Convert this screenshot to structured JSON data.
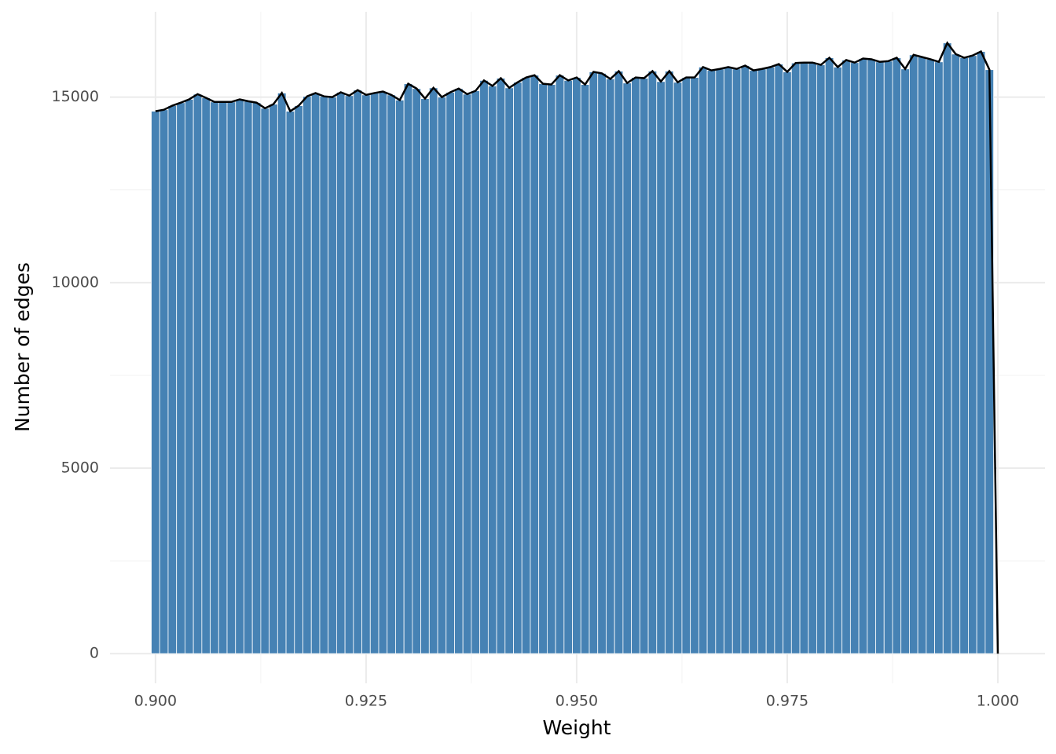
{
  "chart_data": {
    "type": "histogram",
    "x_label": "Weight",
    "y_label": "Number of edges",
    "bins": [
      0.8995,
      0.9005,
      0.9015,
      0.9025,
      0.9035,
      0.9045,
      0.9055,
      0.9065,
      0.9075,
      0.9085,
      0.9095,
      0.9105,
      0.9115,
      0.9125,
      0.9135,
      0.9145,
      0.9155,
      0.9165,
      0.9175,
      0.9185,
      0.9195,
      0.9205,
      0.9215,
      0.9225,
      0.9235,
      0.9245,
      0.9255,
      0.9265,
      0.9275,
      0.9285,
      0.9295,
      0.9305,
      0.9315,
      0.9325,
      0.9335,
      0.9345,
      0.9355,
      0.9365,
      0.9375,
      0.9385,
      0.9395,
      0.9405,
      0.9415,
      0.9425,
      0.9435,
      0.9445,
      0.9455,
      0.9465,
      0.9475,
      0.9485,
      0.9495,
      0.9505,
      0.9515,
      0.9525,
      0.9535,
      0.9545,
      0.9555,
      0.9565,
      0.9575,
      0.9585,
      0.9595,
      0.9605,
      0.9615,
      0.9625,
      0.9635,
      0.9645,
      0.9655,
      0.9665,
      0.9675,
      0.9685,
      0.9695,
      0.9705,
      0.9715,
      0.9725,
      0.9735,
      0.9745,
      0.9755,
      0.9765,
      0.9775,
      0.9785,
      0.9795,
      0.9805,
      0.9815,
      0.9825,
      0.9835,
      0.9845,
      0.9855,
      0.9865,
      0.9875,
      0.9885,
      0.9895,
      0.9905,
      0.9915,
      0.9925,
      0.9935,
      0.9945,
      0.9955,
      0.9965,
      0.9975,
      0.9985,
      0.9995,
      1.0005
    ],
    "values": [
      14620,
      14660,
      14770,
      14850,
      14940,
      15080,
      14980,
      14870,
      14870,
      14870,
      14940,
      14890,
      14850,
      14700,
      14810,
      15110,
      14620,
      14770,
      15020,
      15110,
      15020,
      15000,
      15130,
      15040,
      15190,
      15060,
      15110,
      15150,
      15060,
      14920,
      15360,
      15230,
      14960,
      15250,
      15000,
      15130,
      15230,
      15080,
      15170,
      15450,
      15300,
      15510,
      15250,
      15400,
      15530,
      15590,
      15360,
      15340,
      15590,
      15450,
      15530,
      15340,
      15680,
      15640,
      15490,
      15700,
      15380,
      15530,
      15510,
      15700,
      15420,
      15700,
      15400,
      15530,
      15530,
      15810,
      15720,
      15760,
      15810,
      15760,
      15850,
      15720,
      15760,
      15810,
      15890,
      15680,
      15920,
      15930,
      15930,
      15870,
      16060,
      15810,
      16000,
      15930,
      16040,
      16020,
      15950,
      15970,
      16060,
      15760,
      16140,
      16080,
      16020,
      15950,
      16460,
      16160,
      16060,
      16120,
      16230,
      15740,
      0
    ],
    "color": "#4682b4",
    "line_color": "#000000",
    "xlim": [
      0.8946,
      1.0056
    ],
    "ylim": [
      -800,
      17300
    ],
    "xticks": [
      {
        "value": 0.9,
        "label": "0.900"
      },
      {
        "value": 0.925,
        "label": "0.925"
      },
      {
        "value": 0.95,
        "label": "0.950"
      },
      {
        "value": 0.975,
        "label": "0.975"
      },
      {
        "value": 1.0,
        "label": "1.000"
      }
    ],
    "yticks": [
      0,
      5000,
      10000,
      15000
    ],
    "xminor": [
      0.9125,
      0.9375,
      0.9625,
      0.9875
    ],
    "yminor": [
      2500,
      7500,
      12500
    ],
    "grid": true
  }
}
